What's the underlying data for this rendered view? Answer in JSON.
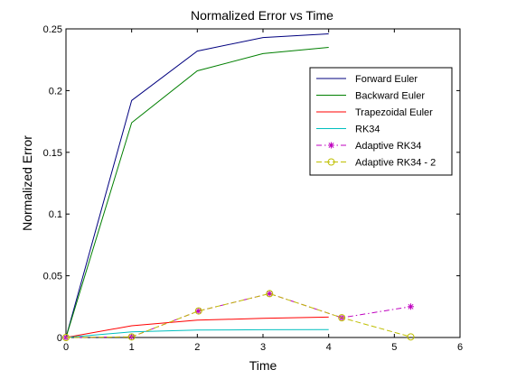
{
  "chart_data": {
    "type": "line",
    "title": "Normalized Error vs Time",
    "xlabel": "Time",
    "ylabel": "Normalized Error",
    "xlim": [
      0,
      6
    ],
    "ylim": [
      0,
      0.25
    ],
    "xticks": [
      0,
      1,
      2,
      3,
      4,
      5,
      6
    ],
    "xtick_labels": [
      "0",
      "1",
      "2",
      "3",
      "4",
      "5",
      "6"
    ],
    "yticks": [
      0,
      0.05,
      0.1,
      0.15,
      0.2,
      0.25
    ],
    "ytick_labels": [
      "0",
      "0.05",
      "0.1",
      "0.15",
      "0.2",
      "0.25"
    ],
    "grid": false,
    "legend_position": "top-right",
    "series": [
      {
        "name": "Forward Euler",
        "color": "#00007f",
        "line_style": "solid",
        "marker": "none",
        "x": [
          0,
          1,
          2,
          3,
          4
        ],
        "y": [
          0,
          0.192,
          0.232,
          0.243,
          0.246
        ]
      },
      {
        "name": "Backward Euler",
        "color": "#007f00",
        "line_style": "solid",
        "marker": "none",
        "x": [
          0,
          1,
          2,
          3,
          4
        ],
        "y": [
          0,
          0.174,
          0.216,
          0.23,
          0.235
        ]
      },
      {
        "name": "Trapezoidal Euler",
        "color": "#ff0000",
        "line_style": "solid",
        "marker": "none",
        "x": [
          0,
          1,
          2,
          3,
          4
        ],
        "y": [
          0,
          0.0095,
          0.014,
          0.0155,
          0.0165
        ]
      },
      {
        "name": "RK34",
        "color": "#00bfbf",
        "line_style": "solid",
        "marker": "none",
        "x": [
          0,
          1,
          2,
          3,
          4
        ],
        "y": [
          0,
          0.0045,
          0.006,
          0.0063,
          0.0064
        ]
      },
      {
        "name": "Adaptive RK34",
        "color": "#bf00bf",
        "line_style": "dashdot",
        "marker": "star",
        "x": [
          0,
          1,
          2.02,
          3.1,
          4.2,
          5.25
        ],
        "y": [
          0,
          0.0005,
          0.0215,
          0.0355,
          0.016,
          0.025
        ]
      },
      {
        "name": "Adaptive RK34 - 2",
        "color": "#bfbf00",
        "line_style": "dashed",
        "marker": "circle",
        "x": [
          0,
          1,
          2.02,
          3.1,
          4.2,
          5.25
        ],
        "y": [
          0,
          0.0005,
          0.0215,
          0.0355,
          0.016,
          0.0005
        ]
      }
    ]
  }
}
